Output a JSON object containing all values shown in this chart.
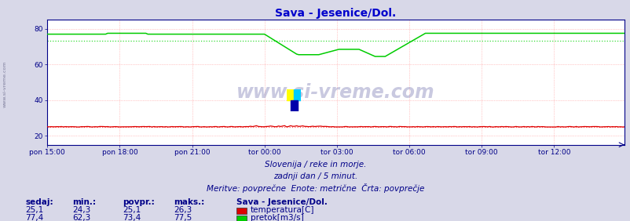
{
  "title": "Sava - Jesenice/Dol.",
  "title_color": "#0000cc",
  "bg_color": "#d8d8e8",
  "plot_bg_color": "#ffffff",
  "grid_color": "#ff9999",
  "tick_color": "#000088",
  "text_color": "#000088",
  "subtitle1": "Slovenija / reke in morje.",
  "subtitle2": "zadnji dan / 5 minut.",
  "subtitle3": "Meritve: povprečne  Enote: metrične  Črta: povprečje",
  "xtick_labels": [
    "pon 15:00",
    "pon 18:00",
    "pon 21:00",
    "tor 00:00",
    "tor 03:00",
    "tor 06:00",
    "tor 09:00",
    "tor 12:00"
  ],
  "ylim": [
    15,
    85
  ],
  "xlim": [
    0,
    287
  ],
  "temp_color": "#dd0000",
  "flow_color": "#00cc00",
  "avg_temp_color": "#ff6666",
  "avg_flow_color": "#33dd33",
  "watermark": "www.si-vreme.com",
  "legend_title": "Sava - Jesenice/Dol.",
  "stat_headers": [
    "sedaj:",
    "min.:",
    "povpr.:",
    "maks.:"
  ],
  "temp_stats": [
    "25,1",
    "24,3",
    "25,1",
    "26,3"
  ],
  "flow_stats": [
    "77,4",
    "62,3",
    "73,4",
    "77,5"
  ],
  "temp_label": "temperatura[C]",
  "flow_label": "pretok[m3/s]",
  "avg_temp": 25.1,
  "avg_flow": 73.4
}
